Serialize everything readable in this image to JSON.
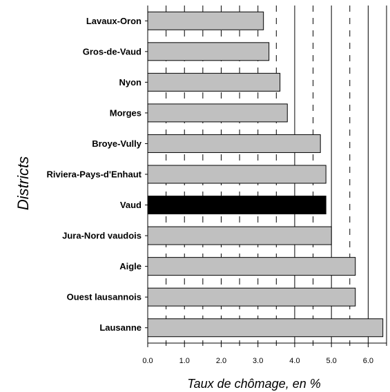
{
  "chart_data": {
    "type": "bar",
    "orientation": "horizontal",
    "categories": [
      "Lavaux-Oron",
      "Gros-de-Vaud",
      "Nyon",
      "Morges",
      "Broye-Vully",
      "Riviera-Pays-d'Enhaut",
      "Vaud",
      "Jura-Nord vaudois",
      "Aigle",
      "Ouest lausannois",
      "Lausanne"
    ],
    "values": [
      3.15,
      3.3,
      3.6,
      3.8,
      4.7,
      4.85,
      4.85,
      5.0,
      5.65,
      5.65,
      6.4
    ],
    "highlight_category": "Vaud",
    "xlabel": "Taux de chômage, en %",
    "ylabel": "Districts",
    "xlim": [
      0,
      6.5
    ],
    "x_ticks": [
      "0.0",
      "1.0",
      "2.0",
      "3.0",
      "4.0",
      "5.0",
      "6.0"
    ],
    "grid": {
      "solid_lines": [
        4.0,
        5.0,
        6.0
      ],
      "dashed_lines": [
        0.5,
        1.0,
        1.5,
        2.0,
        2.5,
        3.0,
        3.5,
        4.5,
        5.5
      ]
    },
    "colors": {
      "bar": "#c0c0c0",
      "highlight": "#000000",
      "stroke": "#000000"
    }
  }
}
